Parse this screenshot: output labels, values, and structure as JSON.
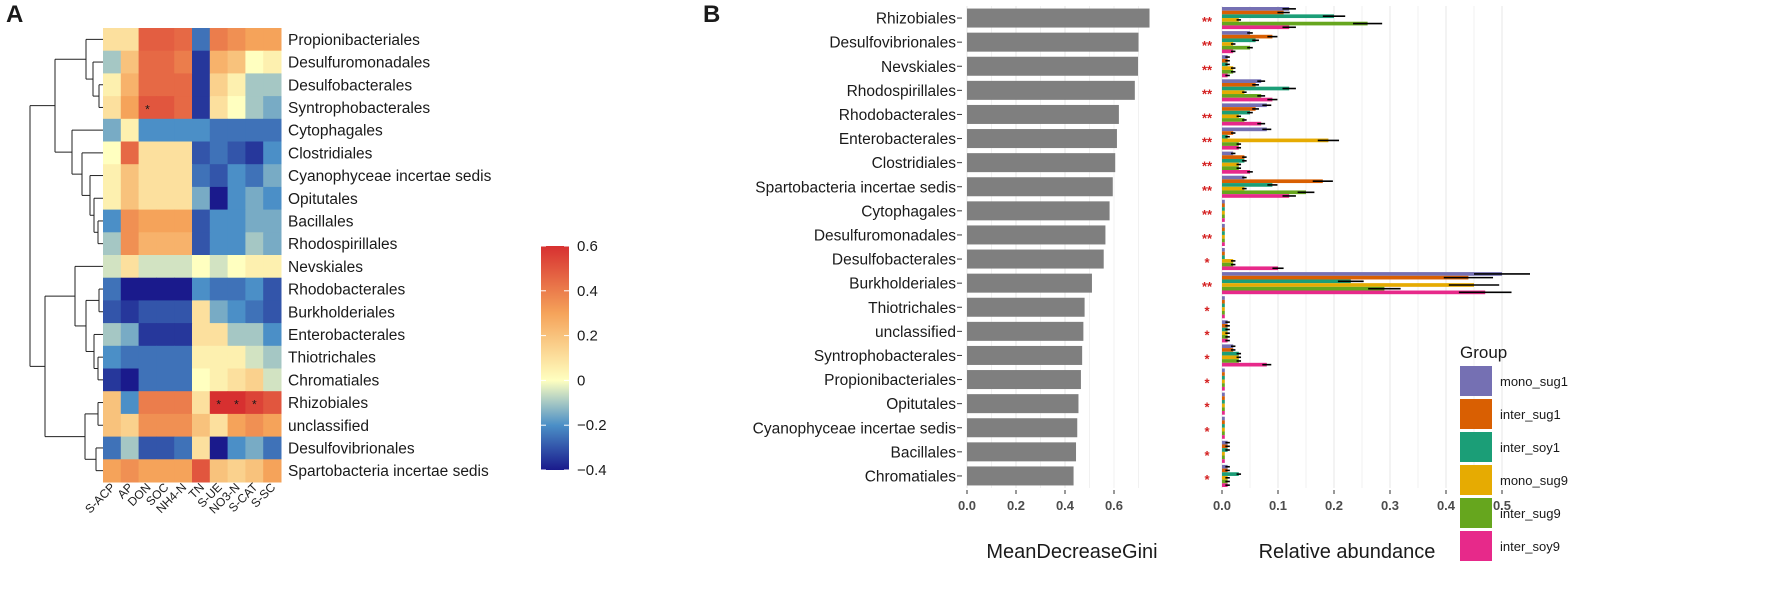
{
  "panel_a": {
    "label": "A",
    "chart_data": {
      "type": "heatmap",
      "columns": [
        "S-ACP",
        "AP",
        "DON",
        "SOC",
        "NH4-N",
        "TN",
        "S-UE",
        "NO3-N",
        "S-CAT",
        "S-SC"
      ],
      "rows": [
        "Propionibacteriales",
        "Desulfuromonadales",
        "Desulfobacterales",
        "Syntrophobacterales",
        "Cytophagales",
        "Clostridiales",
        "Cyanophyceae incertae sedis",
        "Opitutales",
        "Bacillales",
        "Rhodospirillales",
        "Nevskiales",
        "Rhodobacterales",
        "Burkholderiales",
        "Enterobacterales",
        "Thiotrichales",
        "Chromatiales",
        "Rhizobiales",
        "unclassified",
        "Desulfovibrionales",
        "Spartobacteria incertae sedis"
      ],
      "values": [
        [
          0.1,
          0.1,
          0.48,
          0.48,
          0.45,
          -0.25,
          0.4,
          0.35,
          0.3,
          0.3
        ],
        [
          -0.1,
          0.2,
          0.45,
          0.45,
          0.4,
          -0.35,
          0.25,
          0.2,
          0.0,
          0.05
        ],
        [
          0.05,
          0.25,
          0.45,
          0.45,
          0.45,
          -0.35,
          0.15,
          0.05,
          -0.1,
          -0.1
        ],
        [
          0.1,
          0.3,
          0.5,
          0.5,
          0.45,
          -0.35,
          0.1,
          0.0,
          -0.1,
          -0.15
        ],
        [
          -0.15,
          0.05,
          -0.2,
          -0.2,
          -0.2,
          -0.2,
          -0.25,
          -0.25,
          -0.25,
          -0.25
        ],
        [
          0.0,
          0.45,
          0.1,
          0.1,
          0.1,
          -0.3,
          -0.25,
          -0.3,
          -0.35,
          -0.2
        ],
        [
          0.05,
          0.2,
          0.1,
          0.1,
          0.1,
          -0.25,
          -0.3,
          -0.2,
          -0.25,
          -0.15
        ],
        [
          0.05,
          0.2,
          0.1,
          0.1,
          0.1,
          -0.15,
          -0.4,
          -0.2,
          -0.15,
          -0.2
        ],
        [
          -0.2,
          0.35,
          0.3,
          0.3,
          0.3,
          -0.3,
          -0.2,
          -0.2,
          -0.15,
          -0.15
        ],
        [
          -0.1,
          0.35,
          0.25,
          0.25,
          0.25,
          -0.3,
          -0.2,
          -0.2,
          -0.1,
          -0.15
        ],
        [
          -0.05,
          0.1,
          -0.05,
          -0.05,
          -0.05,
          0.0,
          -0.05,
          0.0,
          0.05,
          0.05
        ],
        [
          -0.25,
          -0.4,
          -0.4,
          -0.4,
          -0.4,
          -0.2,
          -0.25,
          -0.25,
          -0.2,
          -0.3
        ],
        [
          -0.3,
          -0.35,
          -0.3,
          -0.3,
          -0.3,
          0.1,
          -0.15,
          -0.2,
          -0.25,
          -0.3
        ],
        [
          -0.1,
          -0.15,
          -0.35,
          -0.35,
          -0.35,
          0.1,
          0.1,
          -0.1,
          -0.1,
          -0.2
        ],
        [
          -0.2,
          -0.25,
          -0.25,
          -0.25,
          -0.25,
          0.05,
          0.05,
          0.05,
          -0.05,
          -0.1
        ],
        [
          -0.35,
          -0.4,
          -0.25,
          -0.25,
          -0.25,
          0.0,
          0.05,
          0.1,
          0.15,
          -0.05
        ],
        [
          0.2,
          -0.2,
          0.4,
          0.4,
          0.4,
          0.1,
          0.6,
          0.6,
          0.55,
          0.5
        ],
        [
          0.2,
          0.15,
          0.35,
          0.35,
          0.35,
          0.2,
          0.1,
          0.3,
          0.35,
          0.3
        ],
        [
          -0.25,
          -0.1,
          -0.3,
          -0.3,
          -0.25,
          0.1,
          -0.4,
          -0.2,
          -0.15,
          -0.25
        ],
        [
          0.3,
          0.35,
          0.3,
          0.3,
          0.3,
          0.5,
          0.2,
          0.15,
          0.2,
          0.3
        ]
      ],
      "significant": [
        [
          3,
          2
        ],
        [
          16,
          6
        ],
        [
          16,
          7
        ],
        [
          16,
          8
        ]
      ],
      "colorbar": {
        "min": -0.4,
        "max": 0.6,
        "ticks": [
          "0.6",
          "0.4",
          "0.2",
          "0",
          "−0.2",
          "−0.4"
        ]
      },
      "star_symbol": "*",
      "colors": {
        "low": "#1a1a8c",
        "mid_low": "#4b8fc7",
        "mid": "#ffffc0",
        "mid_high": "#f5a35a",
        "high": "#d73030"
      }
    }
  },
  "panel_b": {
    "label": "B",
    "chart_data": {
      "type": "bar",
      "orientation": "horizontal",
      "categories": [
        "Rhizobiales",
        "Desulfovibrionales",
        "Nevskiales",
        "Rhodospirillales",
        "Rhodobacterales",
        "Enterobacterales",
        "Clostridiales",
        "Spartobacteria incertae sedis",
        "Cytophagales",
        "Desulfuromonadales",
        "Desulfobacterales",
        "Burkholderiales",
        "Thiotrichales",
        "unclassified",
        "Syntrophobacterales",
        "Propionibacteriales",
        "Opitutales",
        "Cyanophyceae incertae sedis",
        "Bacillales",
        "Chromatiales"
      ],
      "values": [
        0.745,
        0.7,
        0.698,
        0.685,
        0.62,
        0.612,
        0.605,
        0.595,
        0.582,
        0.565,
        0.558,
        0.51,
        0.48,
        0.475,
        0.47,
        0.465,
        0.455,
        0.45,
        0.445,
        0.435
      ],
      "xlabel": "MeanDecreaseGini",
      "xlim": [
        0,
        0.76
      ],
      "ticks": [
        "0.0",
        "0.2",
        "0.4",
        "0.6"
      ],
      "bar_color": "#7f7f7f"
    },
    "significance": [
      "**",
      "**",
      "**",
      "**",
      "**",
      "**",
      "**",
      "**",
      "**",
      "**",
      "*",
      "**",
      "*",
      "*",
      "*",
      "*",
      "*",
      "*",
      "*",
      "*"
    ],
    "abundance_chart": {
      "type": "bar",
      "orientation": "horizontal",
      "xlabel": "Relative abundance",
      "xlim": [
        0,
        0.55
      ],
      "ticks": [
        "0.0",
        "0.1",
        "0.2",
        "0.3",
        "0.4",
        "0.5"
      ],
      "groups": [
        "mono_sug1",
        "inter_sug1",
        "inter_soy1",
        "mono_sug9",
        "inter_sug9",
        "inter_soy9"
      ],
      "group_colors": [
        "#7570b3",
        "#d95f02",
        "#1b9e77",
        "#e6ab02",
        "#66a61e",
        "#e7298a"
      ],
      "legend_title": "Group",
      "series": [
        {
          "name": "mono_sug1",
          "values": [
            0.12,
            0.05,
            0.01,
            0.07,
            0.08,
            0.08,
            0.02,
            0.04,
            0.005,
            0.005,
            0.005,
            0.5,
            0.005,
            0.01,
            0.02,
            0.005,
            0.005,
            0.005,
            0.01,
            0.01
          ]
        },
        {
          "name": "inter_sug1",
          "values": [
            0.11,
            0.09,
            0.01,
            0.06,
            0.06,
            0.02,
            0.04,
            0.18,
            0.005,
            0.005,
            0.005,
            0.44,
            0.005,
            0.01,
            0.02,
            0.005,
            0.005,
            0.005,
            0.01,
            0.01
          ]
        },
        {
          "name": "inter_soy1",
          "values": [
            0.2,
            0.06,
            0.01,
            0.12,
            0.05,
            0.01,
            0.04,
            0.09,
            0.005,
            0.005,
            0.005,
            0.23,
            0.005,
            0.01,
            0.03,
            0.005,
            0.005,
            0.005,
            0.01,
            0.03
          ]
        },
        {
          "name": "mono_sug9",
          "values": [
            0.03,
            0.02,
            0.02,
            0.04,
            0.03,
            0.19,
            0.03,
            0.04,
            0.005,
            0.005,
            0.02,
            0.45,
            0.005,
            0.01,
            0.03,
            0.005,
            0.005,
            0.005,
            0.005,
            0.01
          ]
        },
        {
          "name": "inter_sug9",
          "values": [
            0.26,
            0.05,
            0.02,
            0.07,
            0.04,
            0.03,
            0.03,
            0.15,
            0.005,
            0.005,
            0.02,
            0.29,
            0.005,
            0.01,
            0.03,
            0.005,
            0.005,
            0.005,
            0.005,
            0.01
          ]
        },
        {
          "name": "inter_soy9",
          "values": [
            0.12,
            0.02,
            0.01,
            0.09,
            0.07,
            0.03,
            0.05,
            0.12,
            0.005,
            0.005,
            0.1,
            0.47,
            0.005,
            0.01,
            0.08,
            0.005,
            0.005,
            0.005,
            0.005,
            0.01
          ]
        }
      ]
    }
  }
}
